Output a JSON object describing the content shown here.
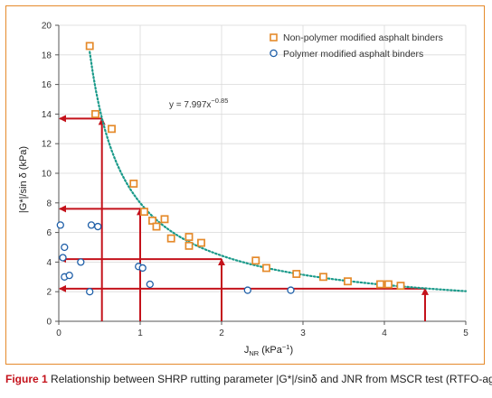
{
  "chart_data": {
    "type": "scatter",
    "title": "",
    "xlabel": "J",
    "xlabel_sub": "NR",
    "xlabel_unit": " (kPa",
    "xlabel_exp": "−1",
    "xlabel_close": ")",
    "ylabel": "|G*|/sin δ (kPa)",
    "xlim": [
      0,
      5
    ],
    "ylim": [
      0,
      20
    ],
    "xticks": [
      0,
      1,
      2,
      3,
      4,
      5
    ],
    "yticks": [
      0,
      2,
      4,
      6,
      8,
      10,
      12,
      14,
      16,
      18,
      20
    ],
    "grid": true,
    "legend_position": "top-right",
    "series": [
      {
        "name": "Non-polymer modified asphalt binders",
        "marker": "square",
        "color": "#e58a2b",
        "points": [
          [
            0.38,
            18.6
          ],
          [
            0.45,
            14.0
          ],
          [
            0.65,
            13.0
          ],
          [
            0.92,
            9.3
          ],
          [
            1.05,
            7.4
          ],
          [
            1.15,
            6.8
          ],
          [
            1.2,
            6.4
          ],
          [
            1.3,
            6.9
          ],
          [
            1.38,
            5.6
          ],
          [
            1.6,
            5.7
          ],
          [
            1.6,
            5.1
          ],
          [
            1.75,
            5.3
          ],
          [
            2.42,
            4.1
          ],
          [
            2.55,
            3.6
          ],
          [
            2.92,
            3.2
          ],
          [
            3.25,
            3.0
          ],
          [
            3.55,
            2.7
          ],
          [
            3.95,
            2.5
          ],
          [
            4.05,
            2.5
          ],
          [
            4.2,
            2.4
          ]
        ]
      },
      {
        "name": "Polymer modified asphalt binders",
        "marker": "circle",
        "color": "#1f5fa8",
        "points": [
          [
            0.02,
            6.5
          ],
          [
            0.07,
            5.0
          ],
          [
            0.05,
            4.3
          ],
          [
            0.07,
            3.0
          ],
          [
            0.13,
            3.1
          ],
          [
            0.27,
            4.0
          ],
          [
            0.4,
            6.5
          ],
          [
            0.48,
            6.4
          ],
          [
            0.38,
            2.0
          ],
          [
            0.98,
            3.7
          ],
          [
            1.03,
            3.6
          ],
          [
            1.12,
            2.5
          ],
          [
            2.32,
            2.1
          ],
          [
            2.85,
            2.1
          ]
        ]
      }
    ],
    "trendline": {
      "type": "power",
      "coefficient": 7.997,
      "exponent": -0.85,
      "x_range": [
        0.38,
        5.0
      ],
      "color": "#1a9a8a",
      "equation_label": "y = 7.997x",
      "equation_exp": "−0.85"
    },
    "reference_lines": {
      "color": "#c4121b",
      "x_values": [
        0.53,
        1.0,
        2.0,
        4.5
      ],
      "y_values": [
        13.7,
        7.6,
        4.2,
        2.2
      ]
    }
  },
  "caption": {
    "lead": "Figure 1",
    "text": " Relationship between SHRP rutting parameter |G*|/sinδ and JNR from MSCR test (RTFO-aged)"
  }
}
